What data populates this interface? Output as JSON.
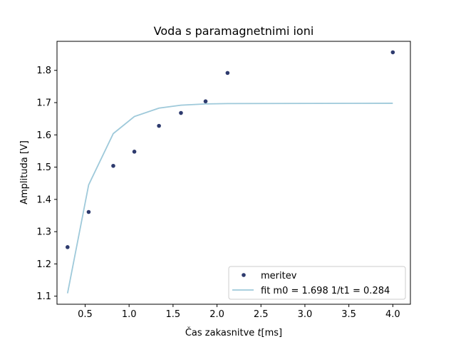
{
  "chart_data": {
    "type": "scatter",
    "title": "Voda s paramagnetnimi ioni",
    "xlabel_prefix": "Čas zakasnitve ",
    "xlabel_var": "t",
    "xlabel_suffix": "[ms]",
    "ylabel": "Amplituda [V]",
    "xlim": [
      0.18,
      4.2
    ],
    "ylim": [
      1.075,
      1.89
    ],
    "xticks": [
      0.5,
      1.0,
      1.5,
      2.0,
      2.5,
      3.0,
      3.5,
      4.0
    ],
    "xtick_labels": [
      "0.5",
      "1.0",
      "1.5",
      "2.0",
      "2.5",
      "3.0",
      "3.5",
      "4.0"
    ],
    "yticks": [
      1.1,
      1.2,
      1.3,
      1.4,
      1.5,
      1.6,
      1.7,
      1.8
    ],
    "ytick_labels": [
      "1.1",
      "1.2",
      "1.3",
      "1.4",
      "1.5",
      "1.6",
      "1.7",
      "1.8"
    ],
    "grid": false,
    "legend_position": "lower-right",
    "series": [
      {
        "name": "meritev",
        "kind": "points",
        "color": "#2e3b6e",
        "x": [
          0.3,
          0.54,
          0.82,
          1.06,
          1.34,
          1.59,
          1.87,
          2.12,
          4.0
        ],
        "y": [
          1.252,
          1.361,
          1.504,
          1.548,
          1.628,
          1.668,
          1.704,
          1.792,
          1.856
        ]
      },
      {
        "name": "fit  m0 = 1.698 1/t1 = 0.284",
        "kind": "line",
        "color": "#9ec9da",
        "x": [
          0.3,
          0.54,
          0.82,
          1.06,
          1.34,
          1.59,
          1.87,
          2.12,
          4.0
        ],
        "y": [
          1.109,
          1.445,
          1.604,
          1.657,
          1.683,
          1.692,
          1.696,
          1.697,
          1.698
        ]
      }
    ]
  }
}
